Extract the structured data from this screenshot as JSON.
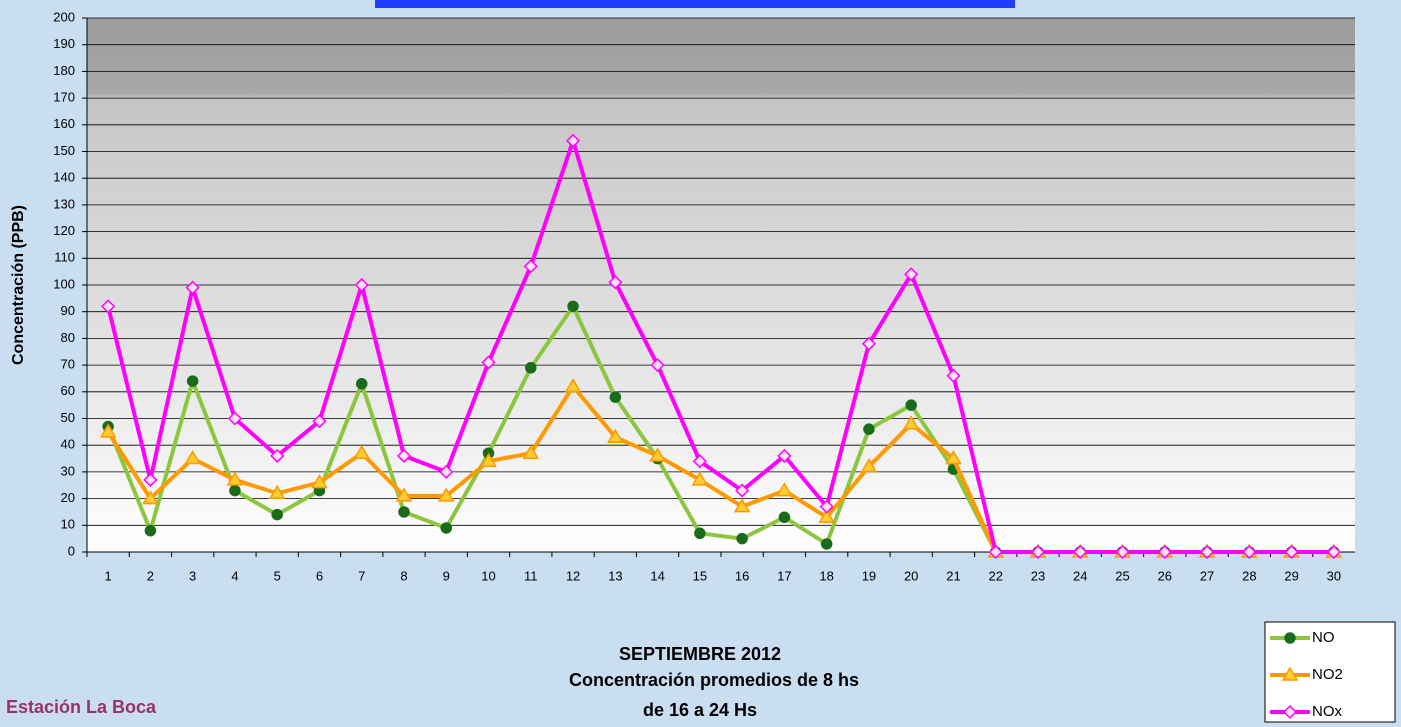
{
  "chart_data": {
    "type": "line",
    "title_lines": [
      "SEPTIEMBRE 2012",
      "Concentración promedios de 8 hs",
      "de 16 a 24 Hs"
    ],
    "station": "Estación La Boca",
    "ylabel": "Concentración  (PPB)",
    "categories": [
      "1",
      "2",
      "3",
      "4",
      "5",
      "6",
      "7",
      "8",
      "9",
      "10",
      "11",
      "12",
      "13",
      "14",
      "15",
      "16",
      "17",
      "18",
      "19",
      "20",
      "21",
      "22",
      "23",
      "24",
      "25",
      "26",
      "27",
      "28",
      "29",
      "30"
    ],
    "series": [
      {
        "name": "NO",
        "color": "#8cc63f",
        "marker": "circle",
        "marker_color": "#1a6b1a",
        "values": [
          47,
          8,
          64,
          23,
          14,
          23,
          63,
          15,
          9,
          37,
          69,
          92,
          58,
          35,
          7,
          5,
          13,
          3,
          46,
          55,
          31,
          0,
          0,
          0,
          0,
          0,
          0,
          0,
          0,
          0
        ]
      },
      {
        "name": "NO2",
        "color": "#ff9900",
        "marker": "triangle",
        "marker_color": "#ffcc33",
        "values": [
          45,
          20,
          35,
          27,
          22,
          26,
          37,
          21,
          21,
          34,
          37,
          62,
          43,
          36,
          27,
          17,
          23,
          13,
          32,
          48,
          35,
          0,
          0,
          0,
          0,
          0,
          0,
          0,
          0,
          0
        ]
      },
      {
        "name": "NOx",
        "color": "#ff00ff",
        "marker": "diamond",
        "marker_color": "#ffe0ff",
        "values": [
          92,
          27,
          99,
          50,
          36,
          49,
          100,
          36,
          30,
          71,
          107,
          154,
          101,
          70,
          34,
          23,
          36,
          17,
          78,
          104,
          66,
          0,
          0,
          0,
          0,
          0,
          0,
          0,
          0,
          0
        ]
      }
    ],
    "ylim": [
      0,
      200
    ],
    "yticks": [
      0,
      10,
      20,
      30,
      40,
      50,
      60,
      70,
      80,
      90,
      100,
      110,
      120,
      130,
      140,
      150,
      160,
      170,
      180,
      190,
      200
    ],
    "grid": true
  }
}
